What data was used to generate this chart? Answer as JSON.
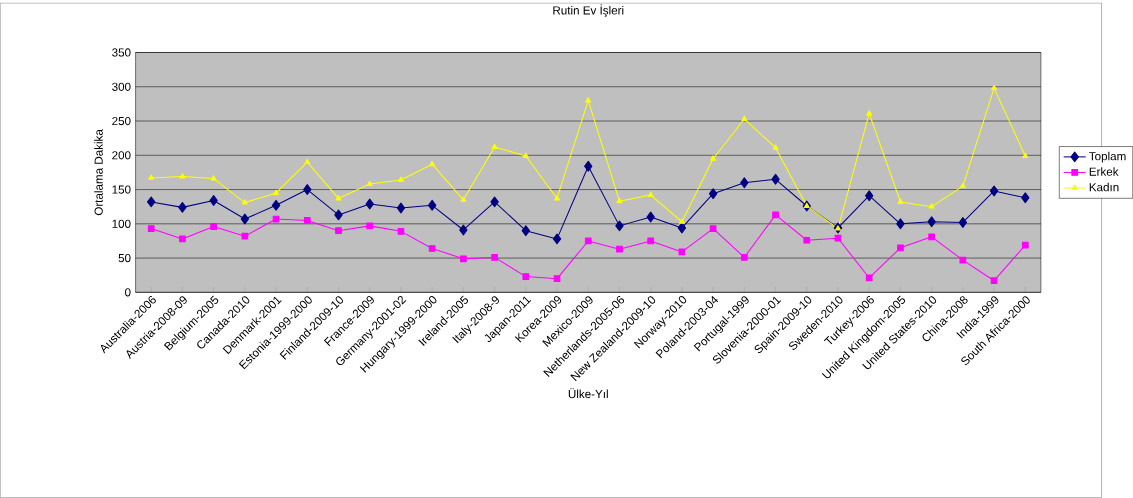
{
  "chart_data": {
    "type": "line",
    "title": "Rutin Ev İşleri",
    "xlabel": "Ülke-Yıl",
    "ylabel": "Ortalama Dakika",
    "categories": [
      "Australia-2006",
      "Austria-2008-09",
      "Belgium-2005",
      "Canada-2010",
      "Denmark-2001",
      "Estonia-1999-2000",
      "Finland-2009-10",
      "France-2009",
      "Germany-2001-02",
      "Hungary-1999-2000",
      "Ireland-2005",
      "Italy-2008-9",
      "Japan-2011",
      "Korea-2009",
      "Mexico-2009",
      "Netherlands-2005-06",
      "New Zealand-2009-10",
      "Norway-2010",
      "Poland-2003-04",
      "Portugal-1999",
      "Slovenia-2000-01",
      "Spain-2009-10",
      "Sweden-2010",
      "Turkey-2006",
      "United Kingdom-2005",
      "United States-2010",
      "China-2008",
      "India-1999",
      "South Africa-2000"
    ],
    "series": [
      {
        "name": "Toplam",
        "color": "#000080",
        "marker": "diamond",
        "values": [
          132,
          124,
          134,
          107,
          127,
          150,
          113,
          129,
          123,
          127,
          91,
          132,
          90,
          78,
          184,
          97,
          110,
          94,
          144,
          160,
          165,
          126,
          94,
          141,
          100,
          103,
          102,
          148,
          138
        ]
      },
      {
        "name": "Erkek",
        "color": "#ff00ff",
        "marker": "square",
        "values": [
          93,
          78,
          96,
          82,
          107,
          105,
          90,
          97,
          89,
          64,
          49,
          51,
          23,
          20,
          75,
          63,
          75,
          59,
          93,
          51,
          113,
          76,
          79,
          21,
          65,
          81,
          47,
          17,
          69
        ]
      },
      {
        "name": "Kadın",
        "color": "#ffff00",
        "marker": "triangle",
        "values": [
          167,
          169,
          166,
          131,
          145,
          190,
          137,
          158,
          164,
          187,
          135,
          212,
          199,
          137,
          280,
          133,
          142,
          103,
          195,
          253,
          211,
          126,
          93,
          261,
          132,
          125,
          155,
          298,
          199
        ]
      }
    ],
    "ylim": [
      0,
      350
    ],
    "yticks": [
      0,
      50,
      100,
      150,
      200,
      250,
      300,
      350
    ],
    "grid": "y",
    "legend": "right"
  }
}
